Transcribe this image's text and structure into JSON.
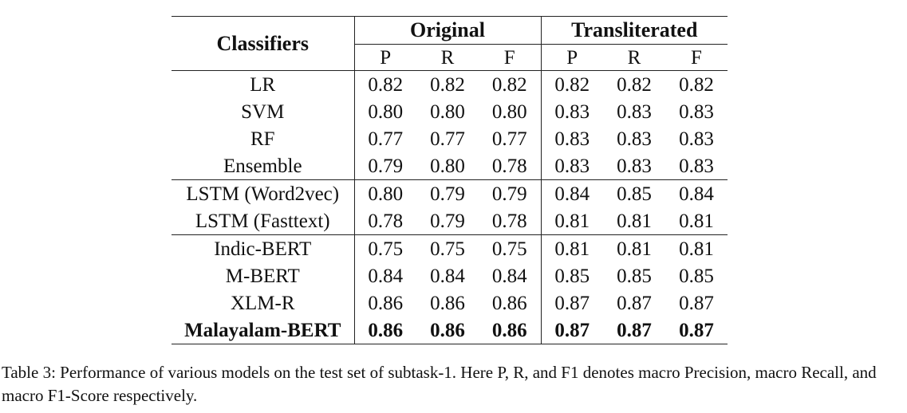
{
  "table": {
    "header": {
      "classifiers": "Classifiers",
      "groups": [
        "Original",
        "Transliterated"
      ],
      "metrics": [
        "P",
        "R",
        "F",
        "P",
        "R",
        "F"
      ]
    },
    "rows": [
      {
        "name": "LR",
        "values": [
          "0.82",
          "0.82",
          "0.82",
          "0.82",
          "0.82",
          "0.82"
        ]
      },
      {
        "name": "SVM",
        "values": [
          "0.80",
          "0.80",
          "0.80",
          "0.83",
          "0.83",
          "0.83"
        ]
      },
      {
        "name": "RF",
        "values": [
          "0.77",
          "0.77",
          "0.77",
          "0.83",
          "0.83",
          "0.83"
        ]
      },
      {
        "name": "Ensemble",
        "values": [
          "0.79",
          "0.80",
          "0.78",
          "0.83",
          "0.83",
          "0.83"
        ]
      },
      {
        "name": "LSTM (Word2vec)",
        "values": [
          "0.80",
          "0.79",
          "0.79",
          "0.84",
          "0.85",
          "0.84"
        ]
      },
      {
        "name": "LSTM (Fasttext)",
        "values": [
          "0.78",
          "0.79",
          "0.78",
          "0.81",
          "0.81",
          "0.81"
        ]
      },
      {
        "name": "Indic-BERT",
        "values": [
          "0.75",
          "0.75",
          "0.75",
          "0.81",
          "0.81",
          "0.81"
        ]
      },
      {
        "name": "M-BERT",
        "values": [
          "0.84",
          "0.84",
          "0.84",
          "0.85",
          "0.85",
          "0.85"
        ]
      },
      {
        "name": "XLM-R",
        "values": [
          "0.86",
          "0.86",
          "0.86",
          "0.87",
          "0.87",
          "0.87"
        ]
      },
      {
        "name": "Malayalam-BERT",
        "values": [
          "0.86",
          "0.86",
          "0.86",
          "0.87",
          "0.87",
          "0.87"
        ]
      }
    ]
  },
  "caption": "Table 3: Performance of various models on the test set of subtask-1. Here P, R, and F1 denotes macro Precision, macro Recall, and macro F1-Score respectively."
}
